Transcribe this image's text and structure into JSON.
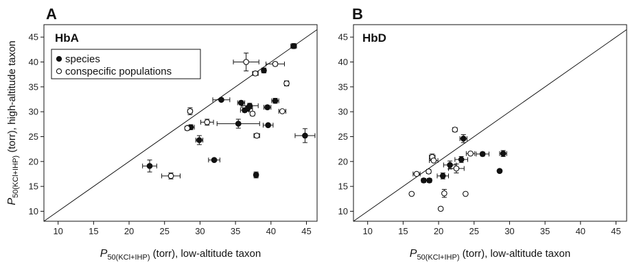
{
  "chart_data": [
    {
      "type": "scatter",
      "panel_letter": "A",
      "title": "HbA",
      "xlabel": {
        "main": "P",
        "sub": "50(KCl+IHP)",
        "rest": " (torr), low-altitude taxon"
      },
      "ylabel": {
        "main": "P",
        "sub": "50(KCl+IHP)",
        "rest": " (torr), high-altitude taxon"
      },
      "xlim": [
        8,
        46.5
      ],
      "ylim": [
        8,
        47.5
      ],
      "xticks": [
        10,
        15,
        20,
        25,
        30,
        35,
        40,
        45
      ],
      "yticks": [
        10,
        15,
        20,
        25,
        30,
        35,
        40,
        45
      ],
      "grid": false,
      "identity_line": true,
      "legend": {
        "position": "top-left",
        "entries": [
          {
            "label": "species",
            "marker": "filled-circle"
          },
          {
            "label": "conspecific populations",
            "marker": "open-circle"
          }
        ]
      },
      "series": [
        {
          "name": "species",
          "marker": "filled",
          "points": [
            {
              "x": 43.2,
              "y": 43.2,
              "xerr": 0.4,
              "yerr": 0.5
            },
            {
              "x": 39.0,
              "y": 38.3,
              "xerr": 0.3,
              "yerr": 0.5
            },
            {
              "x": 33.0,
              "y": 32.4,
              "xerr": 1.2,
              "yerr": 0.3
            },
            {
              "x": 35.8,
              "y": 31.8,
              "xerr": 0.5,
              "yerr": 0.4
            },
            {
              "x": 36.3,
              "y": 30.3,
              "xerr": 0.6,
              "yerr": 0.4
            },
            {
              "x": 36.7,
              "y": 30.6,
              "xerr": 0.7,
              "yerr": 0.5
            },
            {
              "x": 37.0,
              "y": 31.2,
              "xerr": 1.2,
              "yerr": 0.5
            },
            {
              "x": 39.5,
              "y": 30.9,
              "xerr": 0.5,
              "yerr": 0.4
            },
            {
              "x": 40.6,
              "y": 32.2,
              "xerr": 0.5,
              "yerr": 0.5
            },
            {
              "x": 28.7,
              "y": 26.9,
              "xerr": 0.5,
              "yerr": 0.5
            },
            {
              "x": 35.4,
              "y": 27.6,
              "xerr": 3.0,
              "yerr": 0.9
            },
            {
              "x": 39.6,
              "y": 27.3,
              "xerr": 0.7,
              "yerr": 0.3
            },
            {
              "x": 44.8,
              "y": 25.2,
              "xerr": 1.4,
              "yerr": 1.4
            },
            {
              "x": 29.9,
              "y": 24.3,
              "xerr": 0.5,
              "yerr": 0.9
            },
            {
              "x": 22.9,
              "y": 19.1,
              "xerr": 1.0,
              "yerr": 1.2
            },
            {
              "x": 32.0,
              "y": 20.3,
              "xerr": 0.8,
              "yerr": 0.2
            },
            {
              "x": 37.9,
              "y": 17.3,
              "xerr": 0.3,
              "yerr": 0.6
            }
          ]
        },
        {
          "name": "conspecific populations",
          "marker": "open",
          "points": [
            {
              "x": 36.5,
              "y": 40.0,
              "xerr": 1.8,
              "yerr": 1.8
            },
            {
              "x": 40.6,
              "y": 39.6,
              "xerr": 1.3,
              "yerr": 0.4
            },
            {
              "x": 37.8,
              "y": 37.7,
              "xerr": 0.4,
              "yerr": 0.4
            },
            {
              "x": 42.2,
              "y": 35.7,
              "xerr": 0.3,
              "yerr": 0.5
            },
            {
              "x": 28.6,
              "y": 30.1,
              "xerr": 0.3,
              "yerr": 0.7
            },
            {
              "x": 37.4,
              "y": 29.6,
              "xerr": 0.3,
              "yerr": 0.4
            },
            {
              "x": 41.6,
              "y": 30.1,
              "xerr": 0.5,
              "yerr": 0.3
            },
            {
              "x": 31.0,
              "y": 27.9,
              "xerr": 0.9,
              "yerr": 0.6
            },
            {
              "x": 28.2,
              "y": 26.7,
              "xerr": 0.3,
              "yerr": 0.3
            },
            {
              "x": 38.0,
              "y": 25.2,
              "xerr": 0.4,
              "yerr": 0.4
            },
            {
              "x": 25.9,
              "y": 17.1,
              "xerr": 1.3,
              "yerr": 0.6
            }
          ]
        }
      ]
    },
    {
      "type": "scatter",
      "panel_letter": "B",
      "title": "HbD",
      "xlabel": {
        "main": "P",
        "sub": "50(KCl+IHP)",
        "rest": " (torr), low-altitude taxon"
      },
      "ylabel": null,
      "xlim": [
        8,
        46.5
      ],
      "ylim": [
        8,
        47.5
      ],
      "xticks": [
        10,
        15,
        20,
        25,
        30,
        35,
        40,
        45
      ],
      "yticks": [
        10,
        15,
        20,
        25,
        30,
        35,
        40,
        45
      ],
      "grid": false,
      "identity_line": true,
      "legend": null,
      "series": [
        {
          "name": "species",
          "marker": "filled",
          "points": [
            {
              "x": 23.5,
              "y": 24.6,
              "xerr": 0.5,
              "yerr": 0.8
            },
            {
              "x": 26.2,
              "y": 21.5,
              "xerr": 0.9,
              "yerr": 0.4
            },
            {
              "x": 29.1,
              "y": 21.6,
              "xerr": 0.5,
              "yerr": 0.6
            },
            {
              "x": 23.2,
              "y": 20.4,
              "xerr": 0.9,
              "yerr": 0.6
            },
            {
              "x": 21.6,
              "y": 19.3,
              "xerr": 0.9,
              "yerr": 0.8
            },
            {
              "x": 20.6,
              "y": 17.1,
              "xerr": 0.8,
              "yerr": 0.6
            },
            {
              "x": 17.9,
              "y": 16.2,
              "xerr": 0.3,
              "yerr": 0.3
            },
            {
              "x": 18.7,
              "y": 16.2,
              "xerr": 0.3,
              "yerr": 0.3
            },
            {
              "x": 28.6,
              "y": 18.1,
              "xerr": 0.2,
              "yerr": 0.2
            }
          ]
        },
        {
          "name": "conspecific populations",
          "marker": "open",
          "points": [
            {
              "x": 22.3,
              "y": 26.4,
              "xerr": 0.3,
              "yerr": 0.4
            },
            {
              "x": 24.5,
              "y": 21.6,
              "xerr": 0.6,
              "yerr": 0.3
            },
            {
              "x": 19.1,
              "y": 20.9,
              "xerr": 0.4,
              "yerr": 0.6
            },
            {
              "x": 19.3,
              "y": 20.2,
              "xerr": 0.6,
              "yerr": 0.3
            },
            {
              "x": 22.5,
              "y": 18.6,
              "xerr": 1.1,
              "yerr": 0.9
            },
            {
              "x": 18.6,
              "y": 18.0,
              "xerr": 0.3,
              "yerr": 0.3
            },
            {
              "x": 16.9,
              "y": 17.5,
              "xerr": 0.5,
              "yerr": 0.3
            },
            {
              "x": 16.2,
              "y": 13.5,
              "xerr": 0.2,
              "yerr": 0.3
            },
            {
              "x": 20.8,
              "y": 13.6,
              "xerr": 0.2,
              "yerr": 0.8
            },
            {
              "x": 23.8,
              "y": 13.5,
              "xerr": 0.2,
              "yerr": 0.2
            },
            {
              "x": 20.3,
              "y": 10.5,
              "xerr": 0.2,
              "yerr": 0.3
            }
          ]
        }
      ]
    }
  ]
}
